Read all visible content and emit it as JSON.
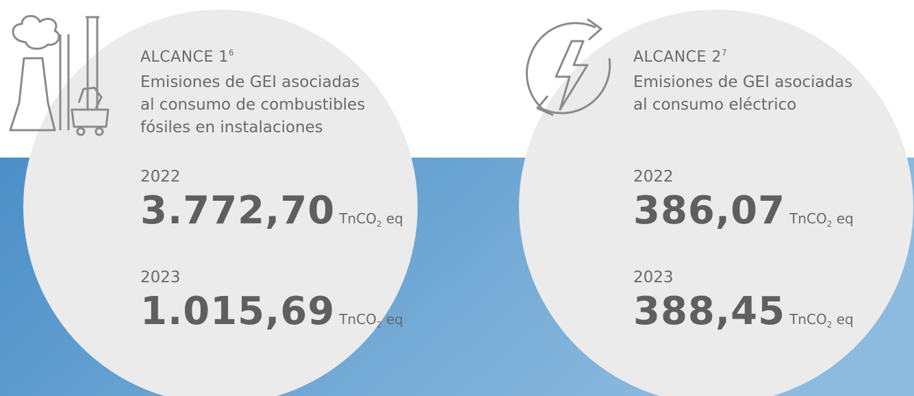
{
  "panels": [
    {
      "title": "ALCANCE 1",
      "note": "6",
      "description": [
        "Emisiones de GEI asociadas",
        "al consumo de combustibles",
        "fósiles en instalaciones"
      ],
      "entries": [
        {
          "year": "2022",
          "value": "3.772,70"
        },
        {
          "year": "2023",
          "value": "1.015,69"
        }
      ]
    },
    {
      "title": "ALCANCE 2",
      "note": "7",
      "description": [
        "Emisiones de GEI asociadas",
        "al consumo eléctrico"
      ],
      "entries": [
        {
          "year": "2022",
          "value": "386,07"
        },
        {
          "year": "2023",
          "value": "388,45"
        }
      ]
    }
  ],
  "unit": {
    "base": "TnCO",
    "sub": "2",
    "suffix": "eq"
  }
}
